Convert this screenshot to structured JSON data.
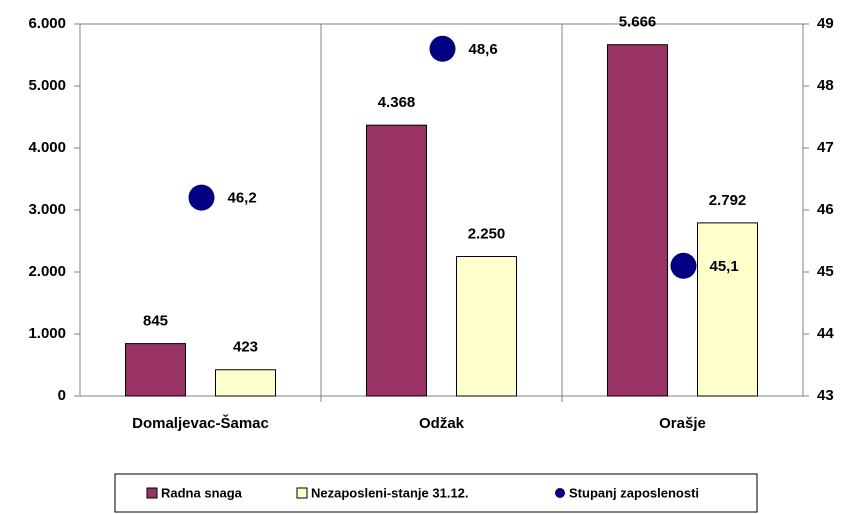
{
  "chart_data": {
    "type": "bar",
    "categories": [
      "Domaljevac-Šamac",
      "Odžak",
      "Orašje"
    ],
    "series": [
      {
        "name": "Radna snaga",
        "color": "#993366",
        "values": [
          845,
          4368,
          5666
        ],
        "value_labels": [
          "845",
          "4.368",
          "5.666"
        ]
      },
      {
        "name": "Nezaposleni-stanje 31.12.",
        "color": "#ffffcc",
        "values": [
          423,
          2250,
          2792
        ],
        "value_labels": [
          "423",
          "2.250",
          "2.792"
        ]
      },
      {
        "name": "Stupanj zaposlenosti",
        "type": "scatter",
        "axis": "y2",
        "color": "#000080",
        "values": [
          46.2,
          48.6,
          45.1
        ],
        "value_labels": [
          "46,2",
          "48,6",
          "45,1"
        ]
      }
    ],
    "ylim": [
      0,
      6000
    ],
    "yticks": [
      0,
      {
        "value": 1000,
        "label": "1.000"
      },
      {
        "value": 2000,
        "label": "2.000"
      },
      {
        "value": 3000,
        "label": "3.000"
      },
      {
        "value": 4000,
        "label": "4.000"
      },
      {
        "value": 5000,
        "label": "5.000"
      },
      {
        "value": 6000,
        "label": "6.000"
      }
    ],
    "y2lim": [
      43,
      49
    ],
    "y2ticks": [
      43,
      44,
      45,
      46,
      47,
      48,
      49
    ],
    "legend": "bottom"
  }
}
